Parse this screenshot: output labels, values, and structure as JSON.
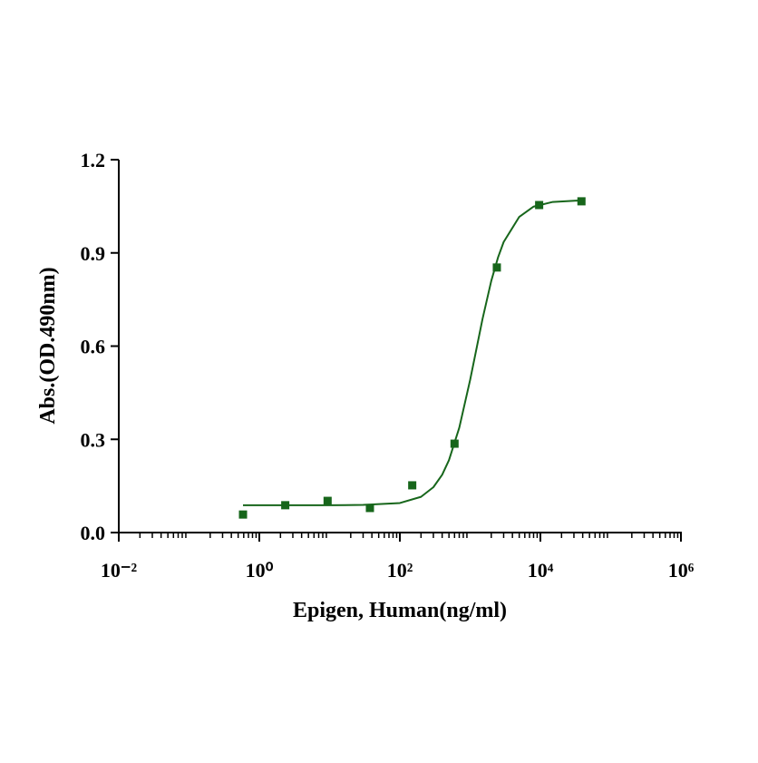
{
  "chart_data": {
    "type": "scatter",
    "xlabel": "Epigen, Human(ng/ml)",
    "ylabel": "Abs.(OD.490nm)",
    "xscale": "log",
    "xlim": [
      0.01,
      1000000
    ],
    "xticks": [
      {
        "value": 0.01,
        "label": "10⁻²"
      },
      {
        "value": 1,
        "label": "10⁰"
      },
      {
        "value": 100,
        "label": "10²"
      },
      {
        "value": 10000,
        "label": "10⁴"
      },
      {
        "value": 1000000,
        "label": "10⁶"
      }
    ],
    "ylim": [
      0,
      1.2
    ],
    "yticks": [
      {
        "value": 0,
        "label": "0.0"
      },
      0.3,
      0.6,
      0.9,
      1.2
    ],
    "series": [
      {
        "style": "markers",
        "color": "#17661b",
        "x": [
          0.586,
          2.34,
          9.37,
          37.5,
          150,
          600,
          2400,
          9600,
          38400
        ],
        "values": [
          0.058,
          0.088,
          0.102,
          0.079,
          0.152,
          0.286,
          0.853,
          1.054,
          1.066
        ]
      },
      {
        "style": "line",
        "color": "#17661b",
        "x": [
          0.586,
          1,
          3,
          10,
          30,
          100,
          200,
          300,
          400,
          500,
          700,
          1000,
          1200,
          1500,
          2000,
          2500,
          3000,
          5000,
          8000,
          15000,
          38400
        ],
        "values": [
          0.088,
          0.088,
          0.088,
          0.088,
          0.089,
          0.095,
          0.115,
          0.146,
          0.186,
          0.233,
          0.337,
          0.491,
          0.579,
          0.687,
          0.81,
          0.886,
          0.935,
          1.016,
          1.049,
          1.064,
          1.069
        ]
      }
    ]
  }
}
